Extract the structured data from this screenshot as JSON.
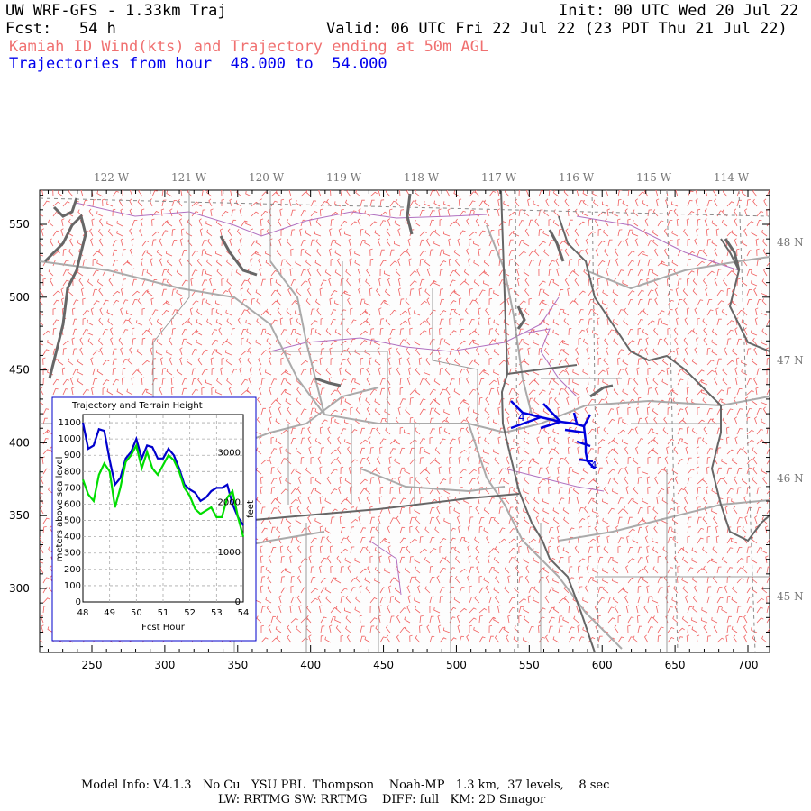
{
  "header": {
    "line1_left": "UW WRF-GFS - 1.33km Traj",
    "line1_right": "Init: 00 UTC Wed 20 Jul 22",
    "line2_left": "Fcst:   54 h",
    "line2_right": "Valid: 06 UTC Fri 22 Jul 22 (23 PDT Thu 21 Jul 22)",
    "line3": "Kamiah ID Wind(kts) and Trajectory ending at 50m AGL",
    "line4": "Trajectories from hour  48.000 to  54.000"
  },
  "map": {
    "x_ticks": [
      "250",
      "300",
      "350",
      "400",
      "450",
      "500",
      "550",
      "600",
      "650",
      "700"
    ],
    "y_ticks": [
      "550",
      "500",
      "450",
      "400",
      "350",
      "300"
    ],
    "lon_labels": [
      "122 W",
      "121 W",
      "120 W",
      "119 W",
      "118 W",
      "117 W",
      "116 W",
      "115 W",
      "114 W"
    ],
    "lat_labels": [
      "48 N",
      "47 N",
      "46 N",
      "45 N"
    ],
    "trajectory_markers": [
      "4",
      "4"
    ],
    "colors": {
      "wind_barbs": "#f06060",
      "trajectory": "#0000dd",
      "roads": "#aaaaaa",
      "state_borders": "#666666",
      "rivers": "#b070c0"
    }
  },
  "inset": {
    "title": "Trajectory and Terrain Height",
    "ylabel_left": "meters above sea level",
    "ylabel_right": "feet",
    "xlabel": "Fcst Hour",
    "x_ticks": [
      "48",
      "49",
      "50",
      "51",
      "52",
      "53",
      "54"
    ],
    "y_ticks_left": [
      "1100",
      "1000",
      "900",
      "800",
      "700",
      "600",
      "500",
      "400",
      "300",
      "200",
      "100",
      "0"
    ],
    "y_ticks_right": [
      "3000",
      "2000",
      "1000",
      "0"
    ]
  },
  "chart_data": {
    "type": "line",
    "title": "Trajectory and Terrain Height",
    "xlabel": "Fcst Hour",
    "ylabel": "meters above sea level",
    "xlim": [
      48,
      54
    ],
    "ylim": [
      0,
      1150
    ],
    "series": [
      {
        "color": "#0000cc",
        "x": [
          48,
          48.2,
          48.4,
          48.6,
          48.8,
          49.0,
          49.2,
          49.4,
          49.6,
          49.8,
          50.0,
          50.2,
          50.4,
          50.6,
          50.8,
          51.0,
          51.2,
          51.4,
          51.6,
          51.8,
          52.0,
          52.2,
          52.4,
          52.6,
          52.8,
          53.0,
          53.2,
          53.4,
          53.6,
          53.8,
          54.0
        ],
        "y": [
          1100,
          940,
          960,
          1060,
          1050,
          870,
          720,
          760,
          880,
          920,
          1000,
          880,
          960,
          950,
          880,
          880,
          940,
          900,
          820,
          720,
          690,
          670,
          620,
          640,
          680,
          700,
          700,
          720,
          600,
          520,
          470
        ]
      },
      {
        "color": "#00dd00",
        "x": [
          48,
          48.2,
          48.4,
          48.6,
          48.8,
          49.0,
          49.2,
          49.4,
          49.6,
          49.8,
          50.0,
          50.2,
          50.4,
          50.6,
          50.8,
          51.0,
          51.2,
          51.4,
          51.6,
          51.8,
          52.0,
          52.2,
          52.4,
          52.6,
          52.8,
          53.0,
          53.2,
          53.4,
          53.6,
          53.8,
          54.0
        ],
        "y": [
          750,
          660,
          620,
          780,
          850,
          800,
          580,
          700,
          860,
          900,
          960,
          820,
          920,
          820,
          780,
          840,
          900,
          870,
          800,
          700,
          650,
          570,
          540,
          560,
          580,
          520,
          520,
          640,
          680,
          520,
          400
        ]
      }
    ]
  },
  "footer": {
    "line1": "Model Info: V4.1.3   No Cu   YSU PBL  Thompson    Noah-MP   1.3 km,  37 levels,    8 sec",
    "line2": "LW: RRTMG SW: RRTMG    DIFF: full   KM: 2D Smagor"
  }
}
